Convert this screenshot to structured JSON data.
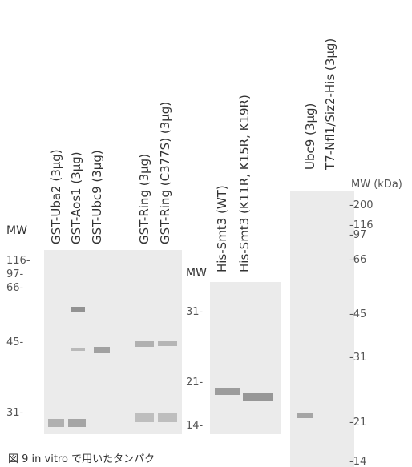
{
  "panels": [
    {
      "mw": "MW",
      "lanes": [
        "GST-Uba2 (3µg)",
        "GST-Aos1 (3µg)",
        "GST-Ubc9 (3µg)",
        "GST-Ring (3µg)",
        "GST-Ring (C377S) (3µg)"
      ],
      "markers": [
        "116-",
        "97-",
        "66-",
        "45-",
        "31-"
      ]
    },
    {
      "mw": "MW",
      "lanes": [
        "His-Smt3 (WT)",
        "His-Smt3 (K11R, K15R, K19R)"
      ],
      "markers": [
        "31-",
        "21-",
        "14-"
      ]
    },
    {
      "mw": "MW (kDa)",
      "lanes": [
        "Ubc9 (3µg)",
        "T7-Nfl1/Siz2-His (3µg)"
      ],
      "markers": [
        "-200",
        "-116",
        "-97",
        "-66",
        "-45",
        "-31",
        "-21",
        "-14"
      ]
    }
  ],
  "caption": "図 9 in vitro で用いたタンパク"
}
